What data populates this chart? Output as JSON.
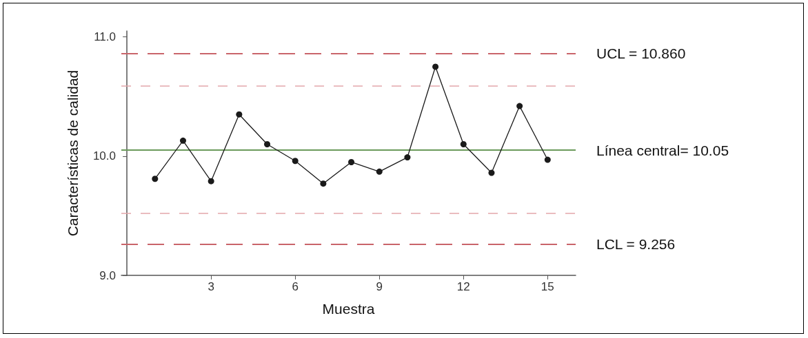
{
  "chart_data": {
    "type": "line",
    "xlabel": "Muestra",
    "ylabel": "Características de calidad",
    "x": [
      1,
      2,
      3,
      4,
      5,
      6,
      7,
      8,
      9,
      10,
      11,
      12,
      13,
      14,
      15
    ],
    "series": [
      {
        "color": "#1a1a1a",
        "values": [
          9.81,
          10.13,
          9.79,
          10.35,
          10.1,
          9.96,
          9.77,
          9.95,
          9.87,
          9.99,
          10.75,
          10.1,
          9.86,
          10.42,
          9.97
        ]
      }
    ],
    "xlim": [
      -0.2,
      16
    ],
    "xticks": [
      3,
      6,
      9,
      12,
      15
    ],
    "ylim": [
      9,
      11.05
    ],
    "yticks": [
      {
        "value": 9,
        "label": "9.0"
      },
      {
        "value": 10,
        "label": "10.0"
      },
      {
        "value": 11,
        "label": "11.0"
      }
    ],
    "ref_lines": [
      {
        "axis": "y",
        "value": 10.86,
        "label": "UCL = 10.860",
        "color": "#c9646a",
        "line_style": "dashed"
      },
      {
        "axis": "y",
        "value": 10.59,
        "label": null,
        "color": "#e3a6aa",
        "line_style": "dashed"
      },
      {
        "axis": "y",
        "value": 10.05,
        "label": "Línea central= 10.05",
        "color": "#6a9a5a",
        "line_style": "solid"
      },
      {
        "axis": "y",
        "value": 9.52,
        "label": null,
        "color": "#e3a6aa",
        "line_style": "dashed"
      },
      {
        "axis": "y",
        "value": 9.256,
        "label": "LCL = 9.256",
        "color": "#c9646a",
        "line_style": "dashed"
      }
    ],
    "marker": "circle",
    "line_style": "solid",
    "grid": false
  }
}
